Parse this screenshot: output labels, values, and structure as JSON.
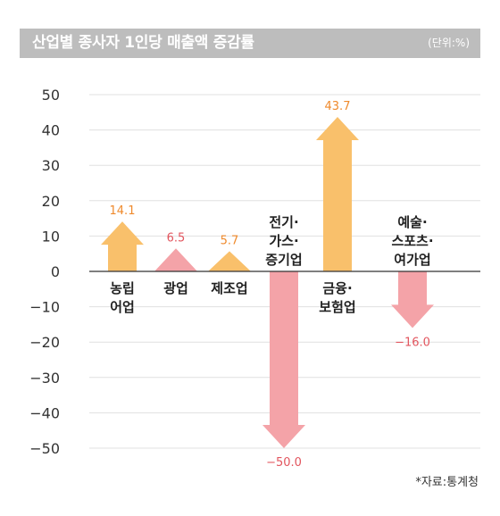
{
  "chart_data": {
    "type": "bar",
    "title": "산업별 종사자 1인당 매출액 증감률",
    "unit": "(단위:%)",
    "source": "*자료:통계청",
    "ylim": [
      -50,
      50
    ],
    "yticks": [
      "50",
      "40",
      "30",
      "20",
      "10",
      "0",
      "−10",
      "−20",
      "−30",
      "−40",
      "−50"
    ],
    "categories": [
      {
        "lines": [
          "농립",
          "어업"
        ],
        "label_pos": "below"
      },
      {
        "lines": [
          "광업"
        ],
        "label_pos": "below"
      },
      {
        "lines": [
          "제조업"
        ],
        "label_pos": "below"
      },
      {
        "lines": [
          "전기·",
          "가스·",
          "증기업"
        ],
        "label_pos": "above"
      },
      {
        "lines": [
          "금융·",
          "보험업"
        ],
        "label_pos": "below"
      },
      {
        "lines": [
          "예술·",
          "스포츠·",
          "여가업"
        ],
        "label_pos": "above"
      }
    ],
    "values": [
      14.1,
      6.5,
      5.7,
      -50.0,
      43.7,
      -16.0
    ],
    "value_labels": [
      "14.1",
      "6.5",
      "5.7",
      "−50.0",
      "43.7",
      "−16.0"
    ],
    "colors": {
      "orange": "#f9c06b",
      "pink": "#f4a3a8",
      "orange_text": "#ef8a2c",
      "pink_text": "#e2555e",
      "axis": "#333333",
      "grid": "#e0e0e0"
    },
    "bar_colors": [
      "orange",
      "pink",
      "orange",
      "pink",
      "orange",
      "pink"
    ],
    "grid": true
  }
}
